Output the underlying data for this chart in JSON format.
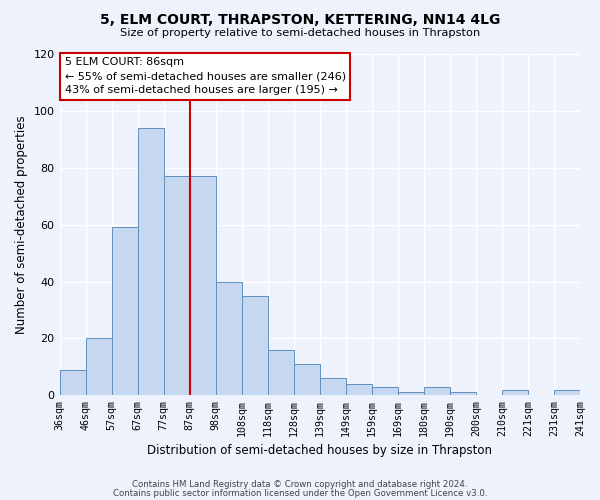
{
  "title": "5, ELM COURT, THRAPSTON, KETTERING, NN14 4LG",
  "subtitle": "Size of property relative to semi-detached houses in Thrapston",
  "xlabel": "Distribution of semi-detached houses by size in Thrapston",
  "ylabel": "Number of semi-detached properties",
  "bar_values": [
    9,
    20,
    59,
    94,
    77,
    77,
    40,
    35,
    16,
    11,
    6,
    4,
    3,
    1,
    3,
    1,
    0,
    2,
    0,
    2
  ],
  "bar_color": "#c5d8f0",
  "bar_edge_color": "#6090c0",
  "ylim": [
    0,
    120
  ],
  "yticks": [
    0,
    20,
    40,
    60,
    80,
    100,
    120
  ],
  "property_line_x": 5,
  "annotation_title": "5 ELM COURT: 86sqm",
  "annotation_line1": "← 55% of semi-detached houses are smaller (246)",
  "annotation_line2": "43% of semi-detached houses are larger (195) →",
  "annotation_box_color": "#ffffff",
  "annotation_box_edge": "#cc0000",
  "vline_color": "#cc0000",
  "footer1": "Contains HM Land Registry data © Crown copyright and database right 2024.",
  "footer2": "Contains public sector information licensed under the Open Government Licence v3.0.",
  "background_color": "#eef2fc",
  "bin_labels": [
    "36sqm",
    "46sqm",
    "57sqm",
    "67sqm",
    "77sqm",
    "87sqm",
    "98sqm",
    "108sqm",
    "118sqm",
    "128sqm",
    "139sqm",
    "149sqm",
    "159sqm",
    "169sqm",
    "180sqm",
    "190sqm",
    "200sqm",
    "210sqm",
    "221sqm",
    "231sqm",
    "241sqm"
  ]
}
